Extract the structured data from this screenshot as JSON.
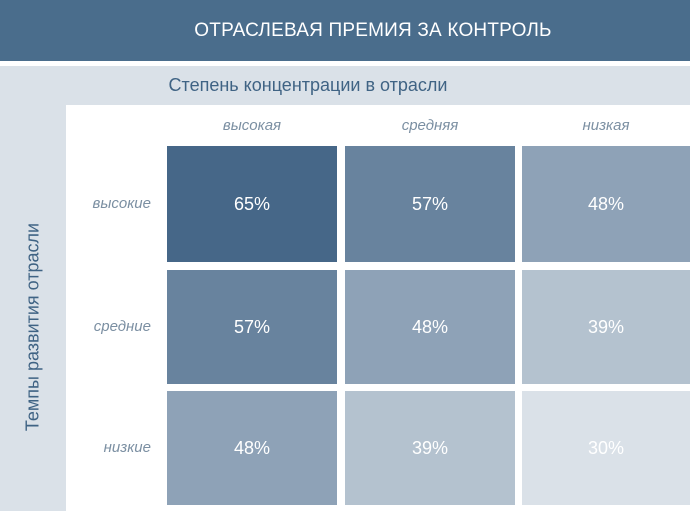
{
  "chart_data": {
    "type": "heatmap",
    "title": "ОТРАСЛЕВАЯ ПРЕМИЯ ЗА КОНТРОЛЬ",
    "xlabel": "Степень концентрации в отрасли",
    "ylabel": "Темпы развития отрасли",
    "x_categories": [
      "высокая",
      "средняя",
      "низкая"
    ],
    "y_categories": [
      "высокие",
      "средние",
      "низкие"
    ],
    "values": [
      [
        65,
        57,
        48
      ],
      [
        57,
        48,
        39
      ],
      [
        48,
        39,
        30
      ]
    ],
    "cell_labels": [
      [
        "65%",
        "57%",
        "48%"
      ],
      [
        "57%",
        "48%",
        "39%"
      ],
      [
        "48%",
        "39%",
        "30%"
      ]
    ],
    "color_min": "#dae1e8",
    "color_max": "#466788",
    "value_range": [
      30,
      65
    ]
  }
}
